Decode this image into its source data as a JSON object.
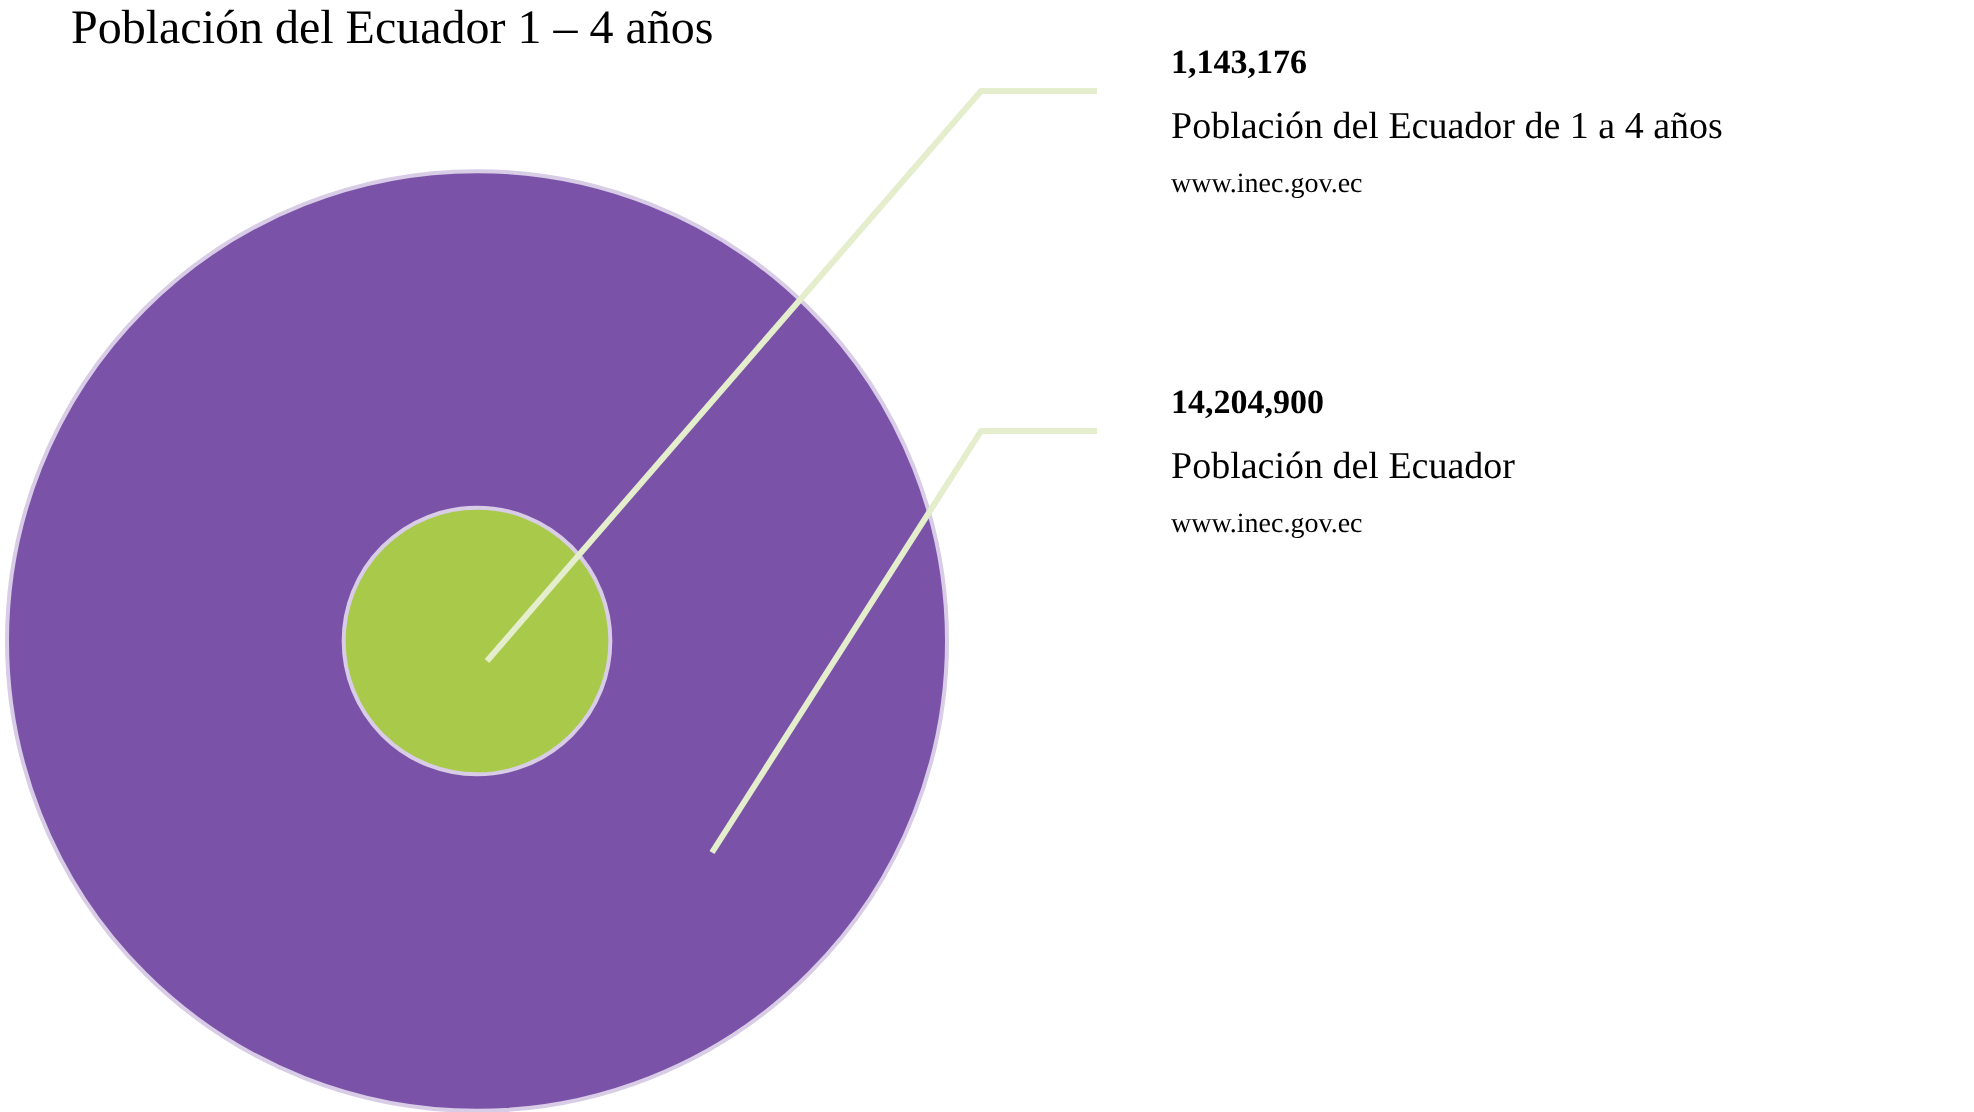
{
  "chart_data": {
    "type": "other",
    "title": "Población del Ecuador 1 – 4 años",
    "categories": [
      "Población del Ecuador de 1 a 4 años",
      "Población del Ecuador"
    ],
    "values": [
      1143176,
      14204900
    ],
    "colors": [
      "#a8c94a",
      "#7a52a8"
    ],
    "value_labels": [
      "1,143,176",
      "14,204,900"
    ],
    "annotations": [
      "www.inec.gov.ec",
      "www.inec.gov.ec"
    ]
  }
}
